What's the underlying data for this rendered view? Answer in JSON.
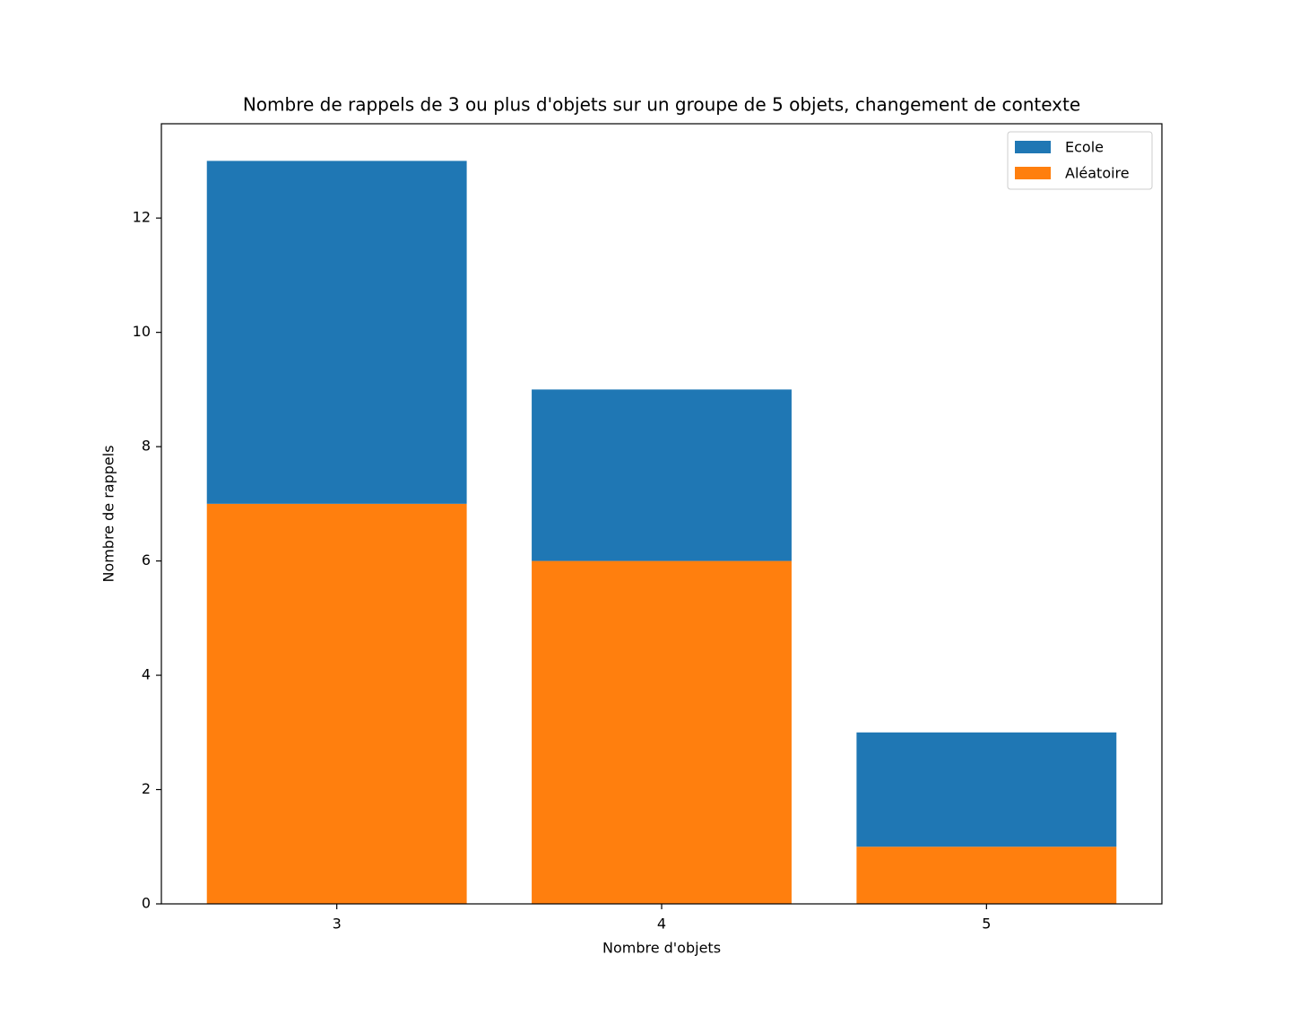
{
  "chart_data": {
    "type": "bar",
    "stacked": true,
    "title": "Nombre de rappels de 3 ou plus d'objets sur un groupe de 5 objets, changement de contexte",
    "x_label": "Nombre d'objets",
    "y_label": "Nombre de rappels",
    "x": [
      3,
      4,
      5
    ],
    "series": [
      {
        "name": "Ecole",
        "color": "#1f77b4",
        "values": [
          6,
          3,
          2
        ]
      },
      {
        "name": "Aléatoire",
        "color": "#ff7f0e",
        "values": [
          7,
          6,
          1
        ]
      }
    ],
    "xlim": [
      2.46,
      5.54
    ],
    "xticks": [
      3,
      4,
      5
    ],
    "ylim": [
      0,
      13.65
    ],
    "yticks": [
      0,
      2,
      4,
      6,
      8,
      10,
      12
    ],
    "legend": "upper right",
    "grid": false
  }
}
